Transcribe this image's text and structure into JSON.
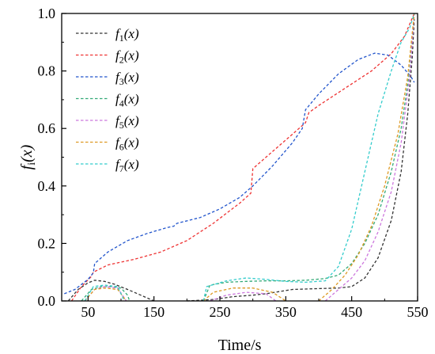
{
  "chart_data": {
    "type": "line",
    "xlabel": "Time/s",
    "ylabel": {
      "prefix": "f",
      "sub": "i",
      "suffix": "(x)"
    },
    "xlim": [
      10,
      550
    ],
    "ylim": [
      0,
      1.0
    ],
    "xticks": [
      50,
      150,
      250,
      350,
      450,
      550
    ],
    "xtick_labels": [
      "50",
      "150",
      "250",
      "350",
      "450",
      "550"
    ],
    "yticks": [
      0,
      0.2,
      0.4,
      0.6,
      0.8,
      1.0
    ],
    "ytick_labels": [
      "0.0",
      "0.2",
      "0.4",
      "0.6",
      "0.8",
      "1.0"
    ],
    "legend_position": "top-left",
    "grid": false,
    "series": [
      {
        "label": {
          "prefix": "f",
          "sub": "1",
          "suffix": "(x)"
        },
        "color": "#333333",
        "segments": [
          [
            [
              20,
              0.0
            ],
            [
              35,
              0.04
            ],
            [
              50,
              0.063
            ],
            [
              60,
              0.072
            ],
            [
              75,
              0.068
            ],
            [
              90,
              0.058
            ],
            [
              110,
              0.04
            ],
            [
              130,
              0.02
            ],
            [
              150,
              0.0
            ]
          ],
          [
            [
              200,
              0.0
            ],
            [
              240,
              0.005
            ],
            [
              270,
              0.015
            ],
            [
              300,
              0.02
            ],
            [
              320,
              0.025
            ],
            [
              360,
              0.04
            ],
            [
              400,
              0.043
            ],
            [
              430,
              0.045
            ],
            [
              450,
              0.05
            ],
            [
              470,
              0.08
            ],
            [
              490,
              0.15
            ],
            [
              510,
              0.28
            ],
            [
              525,
              0.45
            ],
            [
              535,
              0.65
            ],
            [
              542,
              0.85
            ],
            [
              545,
              0.98
            ]
          ]
        ]
      },
      {
        "label": {
          "prefix": "f",
          "sub": "2",
          "suffix": "(x)"
        },
        "color": "#ee3333",
        "segments": [
          [
            [
              25,
              0.0
            ],
            [
              40,
              0.05
            ],
            [
              55,
              0.085
            ],
            [
              58,
              0.1
            ],
            [
              80,
              0.125
            ],
            [
              120,
              0.145
            ],
            [
              160,
              0.17
            ],
            [
              200,
              0.21
            ],
            [
              240,
              0.27
            ],
            [
              280,
              0.34
            ],
            [
              297,
              0.375
            ],
            [
              300,
              0.46
            ],
            [
              320,
              0.5
            ],
            [
              360,
              0.58
            ],
            [
              380,
              0.62
            ],
            [
              385,
              0.655
            ],
            [
              400,
              0.68
            ],
            [
              440,
              0.74
            ],
            [
              480,
              0.8
            ],
            [
              510,
              0.86
            ],
            [
              530,
              0.92
            ],
            [
              545,
              1.0
            ]
          ]
        ]
      },
      {
        "label": {
          "prefix": "f",
          "sub": "3",
          "suffix": "(x)"
        },
        "color": "#2255cc",
        "segments": [
          [
            [
              14,
              0.025
            ],
            [
              30,
              0.04
            ],
            [
              50,
              0.075
            ],
            [
              58,
              0.098
            ],
            [
              60,
              0.13
            ],
            [
              80,
              0.17
            ],
            [
              110,
              0.21
            ],
            [
              140,
              0.235
            ],
            [
              170,
              0.255
            ],
            [
              180,
              0.26
            ],
            [
              185,
              0.27
            ],
            [
              220,
              0.29
            ],
            [
              250,
              0.32
            ],
            [
              280,
              0.36
            ],
            [
              300,
              0.4
            ],
            [
              330,
              0.47
            ],
            [
              360,
              0.55
            ],
            [
              375,
              0.6
            ],
            [
              380,
              0.665
            ],
            [
              400,
              0.72
            ],
            [
              430,
              0.79
            ],
            [
              460,
              0.84
            ],
            [
              485,
              0.862
            ],
            [
              505,
              0.855
            ],
            [
              525,
              0.82
            ],
            [
              540,
              0.78
            ],
            [
              545,
              0.76
            ]
          ]
        ]
      },
      {
        "label": {
          "prefix": "f",
          "sub": "4",
          "suffix": "(x)"
        },
        "color": "#33aa77",
        "segments": [
          [
            [
              40,
              0.0
            ],
            [
              55,
              0.04
            ],
            [
              70,
              0.05
            ],
            [
              85,
              0.05
            ],
            [
              100,
              0.045
            ],
            [
              110,
              0.02
            ],
            [
              113,
              0.0
            ]
          ],
          [
            [
              225,
              0.0
            ],
            [
              235,
              0.055
            ],
            [
              260,
              0.065
            ],
            [
              290,
              0.068
            ],
            [
              320,
              0.07
            ],
            [
              350,
              0.07
            ],
            [
              380,
              0.072
            ],
            [
              410,
              0.078
            ],
            [
              430,
              0.09
            ],
            [
              450,
              0.13
            ],
            [
              470,
              0.2
            ],
            [
              490,
              0.3
            ],
            [
              510,
              0.45
            ],
            [
              525,
              0.6
            ],
            [
              538,
              0.8
            ],
            [
              545,
              1.0
            ]
          ]
        ]
      },
      {
        "label": {
          "prefix": "f",
          "sub": "5",
          "suffix": "(x)"
        },
        "color": "#cc77dd",
        "segments": [
          [
            [
              45,
              0.0
            ],
            [
              60,
              0.04
            ],
            [
              75,
              0.05
            ],
            [
              95,
              0.045
            ],
            [
              108,
              0.0
            ]
          ],
          [
            [
              235,
              0.0
            ],
            [
              260,
              0.02
            ],
            [
              290,
              0.03
            ],
            [
              320,
              0.025
            ],
            [
              335,
              0.0
            ]
          ],
          [
            [
              410,
              0.0
            ],
            [
              430,
              0.04
            ],
            [
              450,
              0.08
            ],
            [
              470,
              0.14
            ],
            [
              490,
              0.24
            ],
            [
              510,
              0.38
            ],
            [
              525,
              0.55
            ],
            [
              538,
              0.78
            ],
            [
              545,
              1.0
            ]
          ]
        ]
      },
      {
        "label": {
          "prefix": "f",
          "sub": "6",
          "suffix": "(x)"
        },
        "color": "#dd9922",
        "segments": [
          [
            [
              45,
              0.0
            ],
            [
              60,
              0.04
            ],
            [
              75,
              0.045
            ],
            [
              95,
              0.04
            ],
            [
              108,
              0.0
            ]
          ],
          [
            [
              225,
              0.0
            ],
            [
              240,
              0.03
            ],
            [
              270,
              0.045
            ],
            [
              300,
              0.045
            ],
            [
              330,
              0.03
            ],
            [
              350,
              0.0
            ]
          ],
          [
            [
              400,
              0.0
            ],
            [
              420,
              0.04
            ],
            [
              440,
              0.09
            ],
            [
              460,
              0.16
            ],
            [
              480,
              0.26
            ],
            [
              500,
              0.4
            ],
            [
              520,
              0.58
            ],
            [
              535,
              0.78
            ],
            [
              545,
              1.0
            ]
          ]
        ]
      },
      {
        "label": {
          "prefix": "f",
          "sub": "7",
          "suffix": "(x)"
        },
        "color": "#33cccc",
        "segments": [
          [
            [
              45,
              0.0
            ],
            [
              58,
              0.05
            ],
            [
              75,
              0.055
            ],
            [
              95,
              0.05
            ],
            [
              105,
              0.0
            ]
          ],
          [
            [
              225,
              0.0
            ],
            [
              230,
              0.05
            ],
            [
              260,
              0.07
            ],
            [
              290,
              0.08
            ],
            [
              320,
              0.075
            ],
            [
              350,
              0.068
            ],
            [
              380,
              0.065
            ],
            [
              410,
              0.07
            ],
            [
              430,
              0.12
            ],
            [
              450,
              0.25
            ],
            [
              470,
              0.45
            ],
            [
              490,
              0.65
            ],
            [
              510,
              0.8
            ],
            [
              525,
              0.9
            ],
            [
              538,
              0.95
            ],
            [
              545,
              1.0
            ]
          ]
        ]
      }
    ]
  }
}
